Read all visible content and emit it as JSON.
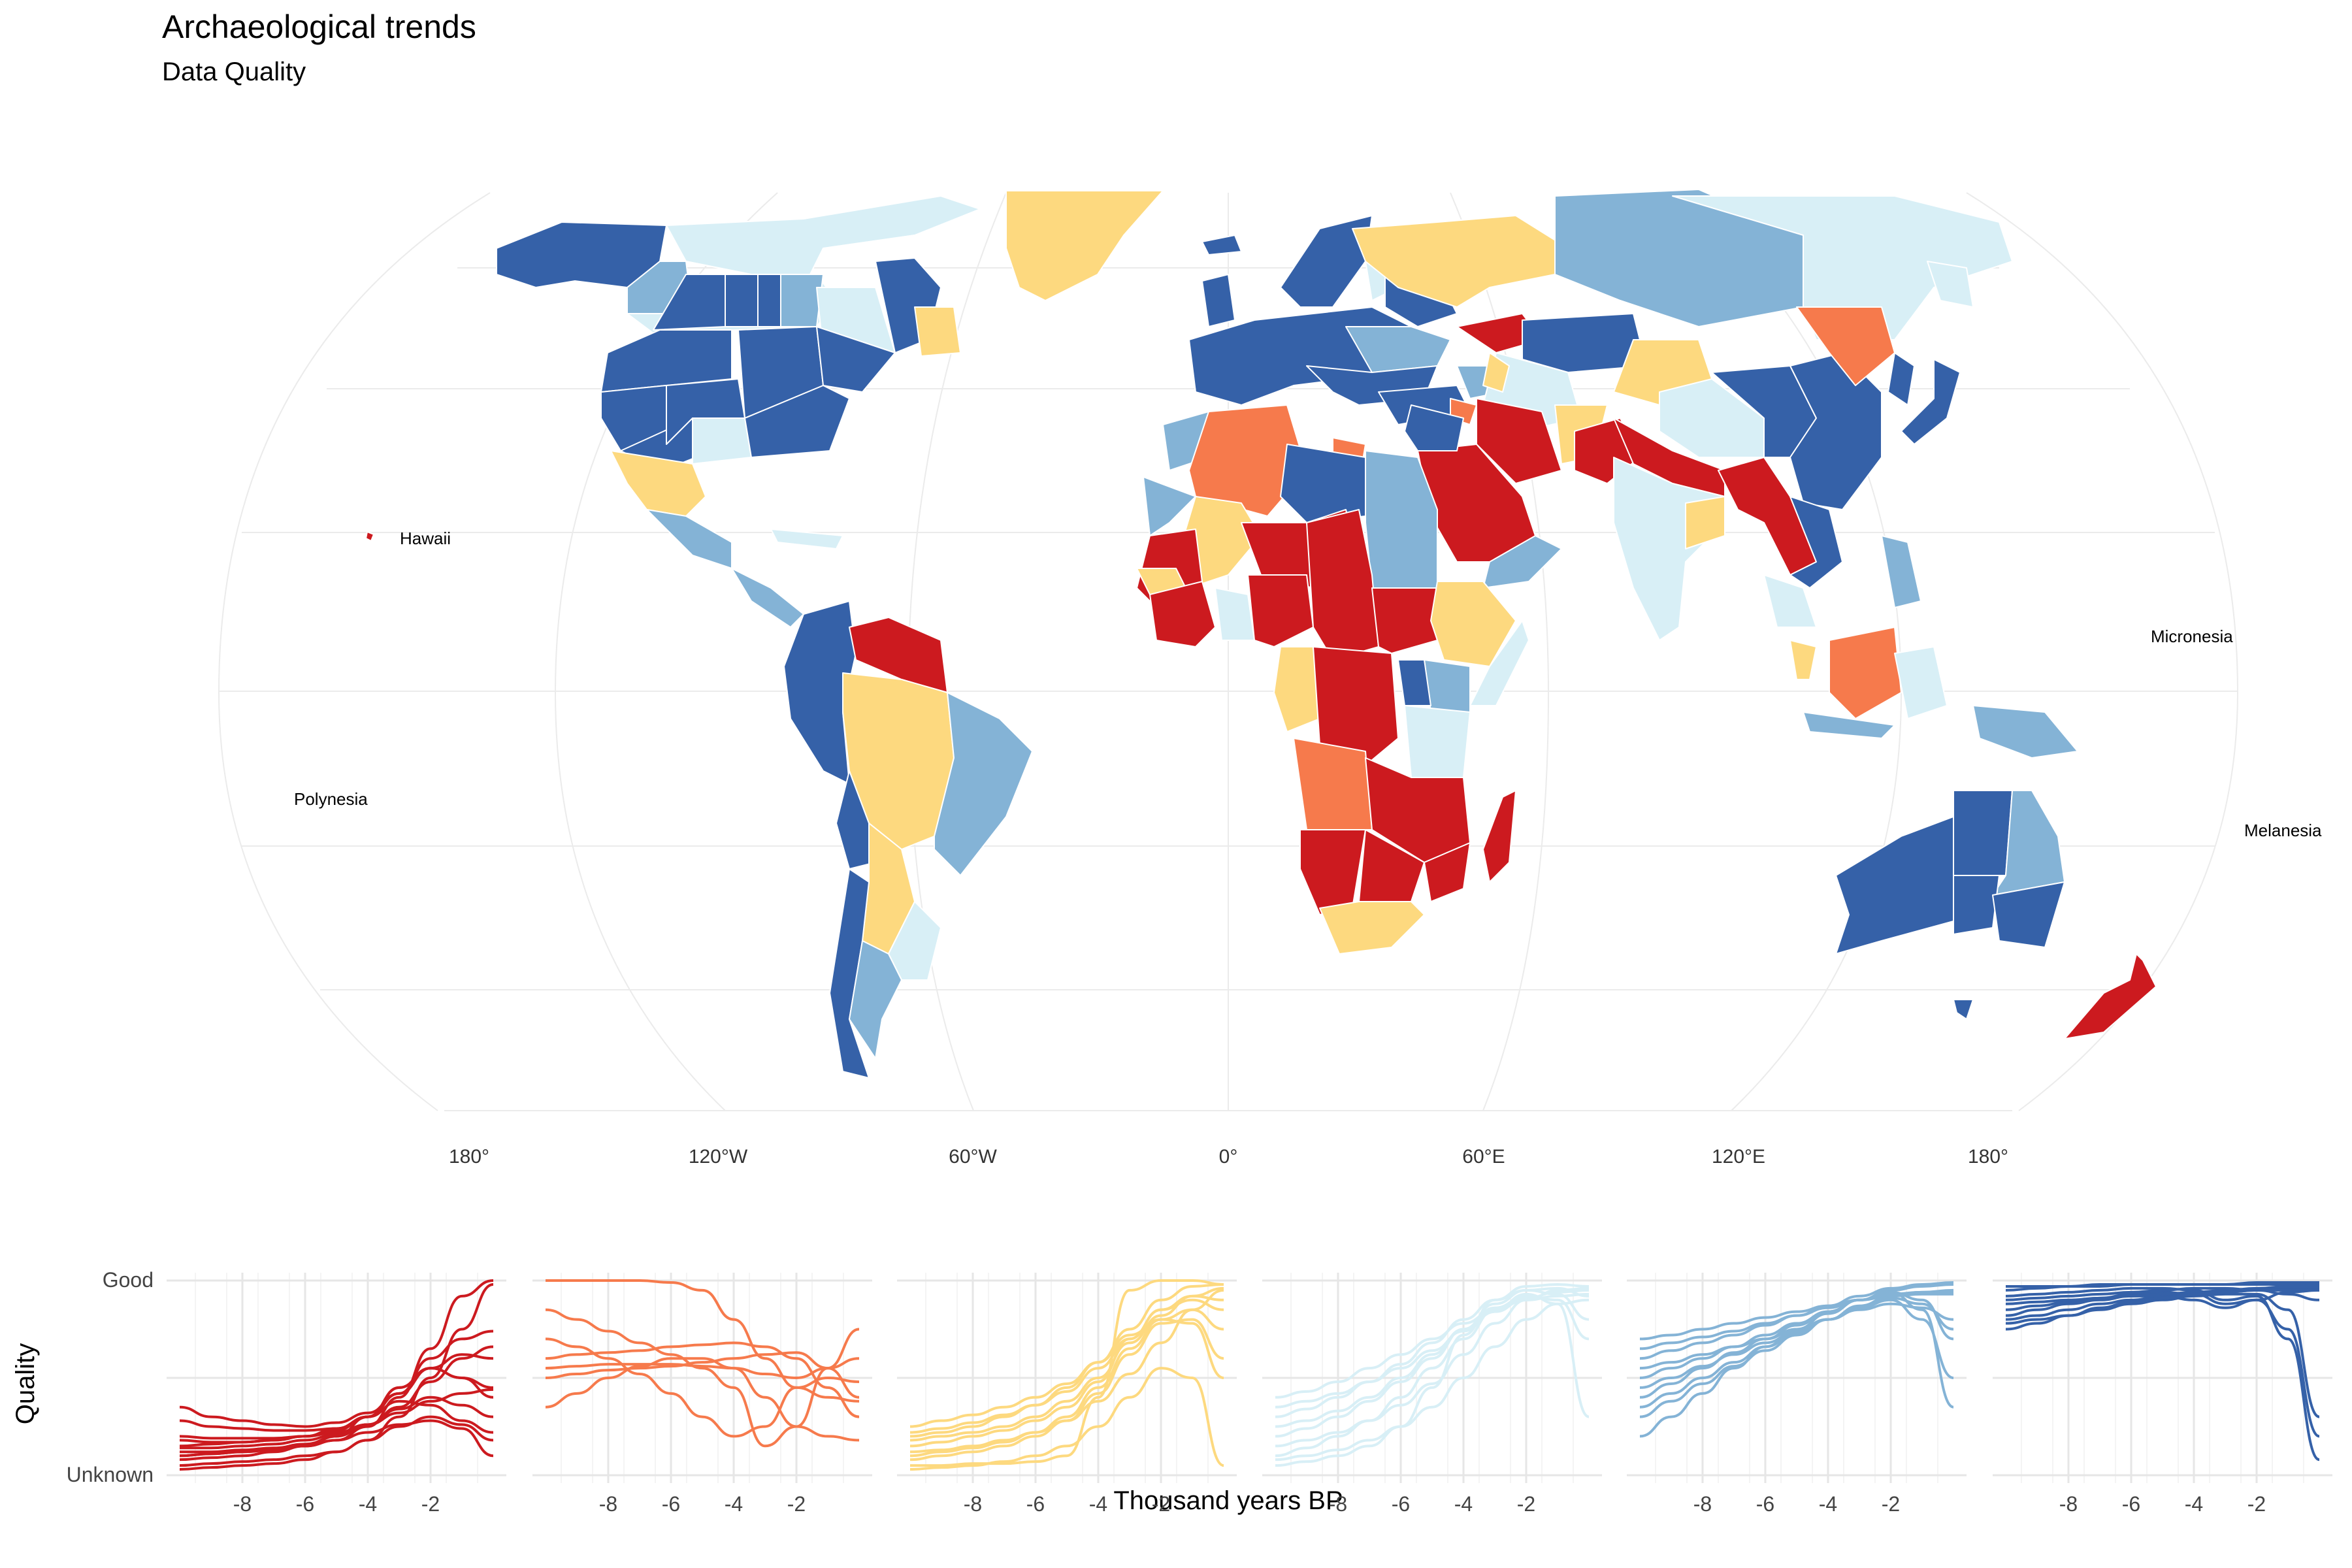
{
  "title": "Archaeological trends",
  "subtitle": "Data Quality",
  "map": {
    "longitude_labels": [
      "180°",
      "120°W",
      "60°W",
      "0°",
      "60°E",
      "120°E",
      "180°"
    ],
    "place_labels": [
      "Hawaii",
      "Micronesia",
      "Polynesia",
      "Melanesia"
    ],
    "colors": {
      "dark_red": "#cc1a1f",
      "orange": "#f67a4c",
      "yellow": "#fdd97f",
      "pale_blue": "#d8eff6",
      "mid_blue": "#84b3d6",
      "dark_blue": "#3561a8",
      "graticule": "#ebebeb"
    }
  },
  "chart_data": {
    "type": "line",
    "ylabel": "Quality",
    "xlabel": "Thousand years BP",
    "y_tick_labels": [
      "Unknown",
      "Good"
    ],
    "x_ticks": [
      -8,
      -6,
      -4,
      -2
    ],
    "xlim": [
      -10,
      0
    ],
    "ylim": [
      0,
      1
    ],
    "panels": [
      {
        "color": "#cc1a1f",
        "series": [
          {
            "values": [
              0.35,
              0.3,
              0.28,
              0.26,
              0.25,
              0.27,
              0.32,
              0.42,
              0.55,
              0.62,
              0.6
            ]
          },
          {
            "values": [
              0.1,
              0.11,
              0.12,
              0.13,
              0.15,
              0.18,
              0.25,
              0.4,
              0.65,
              0.92,
              1.0
            ]
          },
          {
            "values": [
              0.05,
              0.06,
              0.07,
              0.08,
              0.1,
              0.12,
              0.18,
              0.3,
              0.5,
              0.75,
              0.98
            ]
          },
          {
            "values": [
              0.28,
              0.25,
              0.24,
              0.23,
              0.23,
              0.24,
              0.3,
              0.45,
              0.55,
              0.5,
              0.45
            ]
          },
          {
            "values": [
              0.15,
              0.16,
              0.17,
              0.18,
              0.2,
              0.23,
              0.3,
              0.42,
              0.6,
              0.7,
              0.74
            ]
          },
          {
            "values": [
              0.08,
              0.09,
              0.1,
              0.12,
              0.15,
              0.2,
              0.3,
              0.45,
              0.55,
              0.5,
              0.4
            ]
          },
          {
            "values": [
              0.2,
              0.19,
              0.19,
              0.19,
              0.2,
              0.22,
              0.26,
              0.32,
              0.38,
              0.42,
              0.44
            ]
          },
          {
            "values": [
              0.12,
              0.12,
              0.13,
              0.14,
              0.16,
              0.2,
              0.26,
              0.34,
              0.4,
              0.36,
              0.3
            ]
          },
          {
            "values": [
              0.03,
              0.04,
              0.05,
              0.06,
              0.08,
              0.12,
              0.18,
              0.25,
              0.3,
              0.26,
              0.18
            ]
          },
          {
            "values": [
              0.18,
              0.17,
              0.17,
              0.18,
              0.2,
              0.24,
              0.3,
              0.38,
              0.36,
              0.28,
              0.22
            ]
          },
          {
            "values": [
              0.1,
              0.11,
              0.12,
              0.13,
              0.15,
              0.18,
              0.22,
              0.26,
              0.28,
              0.24,
              0.1
            ]
          },
          {
            "values": [
              0.14,
              0.14,
              0.15,
              0.16,
              0.18,
              0.21,
              0.26,
              0.35,
              0.48,
              0.6,
              0.66
            ]
          }
        ]
      },
      {
        "color": "#f67a4c",
        "series": [
          {
            "values": [
              1.0,
              1.0,
              1.0,
              1.0,
              0.99,
              0.95,
              0.8,
              0.6,
              0.45,
              0.4,
              0.38
            ]
          },
          {
            "values": [
              0.85,
              0.8,
              0.74,
              0.68,
              0.62,
              0.55,
              0.45,
              0.15,
              0.25,
              0.55,
              0.75
            ]
          },
          {
            "values": [
              0.6,
              0.62,
              0.63,
              0.64,
              0.66,
              0.67,
              0.68,
              0.66,
              0.6,
              0.45,
              0.3
            ]
          },
          {
            "values": [
              0.55,
              0.56,
              0.57,
              0.57,
              0.57,
              0.56,
              0.55,
              0.52,
              0.5,
              0.55,
              0.6
            ]
          },
          {
            "values": [
              0.5,
              0.52,
              0.54,
              0.55,
              0.56,
              0.58,
              0.6,
              0.62,
              0.63,
              0.55,
              0.4
            ]
          },
          {
            "values": [
              0.35,
              0.42,
              0.5,
              0.56,
              0.6,
              0.6,
              0.55,
              0.4,
              0.25,
              0.2,
              0.18
            ]
          },
          {
            "values": [
              0.7,
              0.66,
              0.6,
              0.52,
              0.42,
              0.3,
              0.2,
              0.25,
              0.45,
              0.5,
              0.48
            ]
          }
        ]
      },
      {
        "color": "#fdd97f",
        "series": [
          {
            "values": [
              0.05,
              0.05,
              0.06,
              0.06,
              0.07,
              0.1,
              0.4,
              0.95,
              1.0,
              1.0,
              0.98
            ]
          },
          {
            "values": [
              0.15,
              0.17,
              0.2,
              0.23,
              0.28,
              0.35,
              0.48,
              0.7,
              0.85,
              0.9,
              0.85
            ]
          },
          {
            "values": [
              0.1,
              0.12,
              0.14,
              0.17,
              0.22,
              0.3,
              0.45,
              0.65,
              0.8,
              0.85,
              0.75
            ]
          },
          {
            "values": [
              0.25,
              0.28,
              0.31,
              0.35,
              0.4,
              0.47,
              0.58,
              0.75,
              0.9,
              0.97,
              0.98
            ]
          },
          {
            "values": [
              0.08,
              0.1,
              0.12,
              0.15,
              0.2,
              0.28,
              0.42,
              0.62,
              0.78,
              0.8,
              0.6
            ]
          },
          {
            "values": [
              0.2,
              0.22,
              0.25,
              0.3,
              0.36,
              0.45,
              0.58,
              0.72,
              0.8,
              0.78,
              0.5
            ]
          },
          {
            "values": [
              0.12,
              0.13,
              0.15,
              0.18,
              0.22,
              0.28,
              0.38,
              0.52,
              0.68,
              0.85,
              0.95
            ]
          },
          {
            "values": [
              0.18,
              0.2,
              0.22,
              0.25,
              0.3,
              0.38,
              0.5,
              0.68,
              0.82,
              0.92,
              0.96
            ]
          },
          {
            "values": [
              0.03,
              0.04,
              0.05,
              0.07,
              0.1,
              0.15,
              0.25,
              0.4,
              0.55,
              0.5,
              0.05
            ]
          },
          {
            "values": [
              0.22,
              0.24,
              0.27,
              0.31,
              0.36,
              0.43,
              0.55,
              0.7,
              0.85,
              0.92,
              0.9
            ]
          }
        ]
      },
      {
        "color": "#d8eff6",
        "series": [
          {
            "values": [
              0.05,
              0.07,
              0.1,
              0.15,
              0.25,
              0.45,
              0.72,
              0.9,
              0.97,
              0.98,
              0.97
            ]
          },
          {
            "values": [
              0.2,
              0.24,
              0.3,
              0.38,
              0.48,
              0.6,
              0.75,
              0.88,
              0.95,
              0.96,
              0.92
            ]
          },
          {
            "values": [
              0.3,
              0.34,
              0.4,
              0.48,
              0.57,
              0.68,
              0.8,
              0.9,
              0.95,
              0.93,
              0.8
            ]
          },
          {
            "values": [
              0.1,
              0.14,
              0.2,
              0.28,
              0.4,
              0.55,
              0.7,
              0.85,
              0.93,
              0.88,
              0.3
            ]
          },
          {
            "values": [
              0.4,
              0.43,
              0.48,
              0.55,
              0.62,
              0.7,
              0.78,
              0.85,
              0.9,
              0.92,
              0.93
            ]
          },
          {
            "values": [
              0.15,
              0.18,
              0.22,
              0.28,
              0.36,
              0.47,
              0.62,
              0.78,
              0.9,
              0.95,
              0.96
            ]
          },
          {
            "values": [
              0.25,
              0.28,
              0.33,
              0.4,
              0.5,
              0.62,
              0.75,
              0.86,
              0.92,
              0.9,
              0.7
            ]
          },
          {
            "values": [
              0.08,
              0.1,
              0.13,
              0.18,
              0.25,
              0.35,
              0.5,
              0.66,
              0.8,
              0.88,
              0.9
            ]
          },
          {
            "values": [
              0.35,
              0.38,
              0.42,
              0.48,
              0.55,
              0.64,
              0.74,
              0.84,
              0.91,
              0.94,
              0.95
            ]
          }
        ]
      },
      {
        "color": "#84b3d6",
        "series": [
          {
            "values": [
              0.5,
              0.55,
              0.6,
              0.66,
              0.72,
              0.78,
              0.84,
              0.9,
              0.95,
              0.97,
              0.98
            ]
          },
          {
            "values": [
              0.4,
              0.47,
              0.55,
              0.63,
              0.7,
              0.77,
              0.84,
              0.9,
              0.94,
              0.9,
              0.7
            ]
          },
          {
            "values": [
              0.2,
              0.3,
              0.42,
              0.55,
              0.66,
              0.75,
              0.83,
              0.9,
              0.94,
              0.85,
              0.35
            ]
          },
          {
            "values": [
              0.6,
              0.64,
              0.68,
              0.72,
              0.77,
              0.82,
              0.87,
              0.92,
              0.96,
              0.98,
              0.99
            ]
          },
          {
            "values": [
              0.55,
              0.58,
              0.62,
              0.66,
              0.7,
              0.75,
              0.8,
              0.85,
              0.88,
              0.86,
              0.8
            ]
          },
          {
            "values": [
              0.3,
              0.38,
              0.47,
              0.56,
              0.64,
              0.72,
              0.8,
              0.87,
              0.92,
              0.94,
              0.95
            ]
          },
          {
            "values": [
              0.65,
              0.68,
              0.71,
              0.74,
              0.78,
              0.82,
              0.86,
              0.9,
              0.93,
              0.94,
              0.94
            ]
          },
          {
            "values": [
              0.45,
              0.5,
              0.56,
              0.62,
              0.68,
              0.74,
              0.8,
              0.86,
              0.9,
              0.8,
              0.5
            ]
          },
          {
            "values": [
              0.35,
              0.42,
              0.5,
              0.58,
              0.66,
              0.73,
              0.8,
              0.86,
              0.91,
              0.88,
              0.75
            ]
          },
          {
            "values": [
              0.7,
              0.72,
              0.75,
              0.78,
              0.81,
              0.84,
              0.87,
              0.9,
              0.92,
              0.93,
              0.93
            ]
          }
        ]
      },
      {
        "color": "#3561a8",
        "series": [
          {
            "values": [
              0.92,
              0.93,
              0.94,
              0.95,
              0.96,
              0.96,
              0.95,
              0.9,
              0.92,
              0.7,
              0.08
            ]
          },
          {
            "values": [
              0.85,
              0.87,
              0.89,
              0.91,
              0.93,
              0.94,
              0.93,
              0.88,
              0.9,
              0.75,
              0.2
            ]
          },
          {
            "values": [
              0.78,
              0.8,
              0.82,
              0.85,
              0.88,
              0.9,
              0.92,
              0.93,
              0.93,
              0.85,
              0.3
            ]
          },
          {
            "values": [
              0.95,
              0.96,
              0.97,
              0.97,
              0.98,
              0.98,
              0.98,
              0.98,
              0.99,
              0.99,
              0.99
            ]
          },
          {
            "values": [
              0.8,
              0.82,
              0.85,
              0.88,
              0.9,
              0.92,
              0.93,
              0.94,
              0.95,
              0.96,
              0.96
            ]
          },
          {
            "values": [
              0.88,
              0.89,
              0.9,
              0.91,
              0.92,
              0.92,
              0.9,
              0.86,
              0.9,
              0.94,
              0.95
            ]
          },
          {
            "values": [
              0.82,
              0.85,
              0.88,
              0.9,
              0.92,
              0.93,
              0.94,
              0.95,
              0.96,
              0.97,
              0.97
            ]
          },
          {
            "values": [
              0.9,
              0.91,
              0.92,
              0.93,
              0.94,
              0.95,
              0.96,
              0.96,
              0.95,
              0.93,
              0.9
            ]
          },
          {
            "values": [
              0.75,
              0.78,
              0.82,
              0.86,
              0.89,
              0.91,
              0.93,
              0.94,
              0.95,
              0.95,
              0.95
            ]
          },
          {
            "values": [
              0.97,
              0.97,
              0.97,
              0.98,
              0.98,
              0.98,
              0.98,
              0.98,
              0.98,
              0.98,
              0.98
            ]
          }
        ]
      }
    ]
  }
}
